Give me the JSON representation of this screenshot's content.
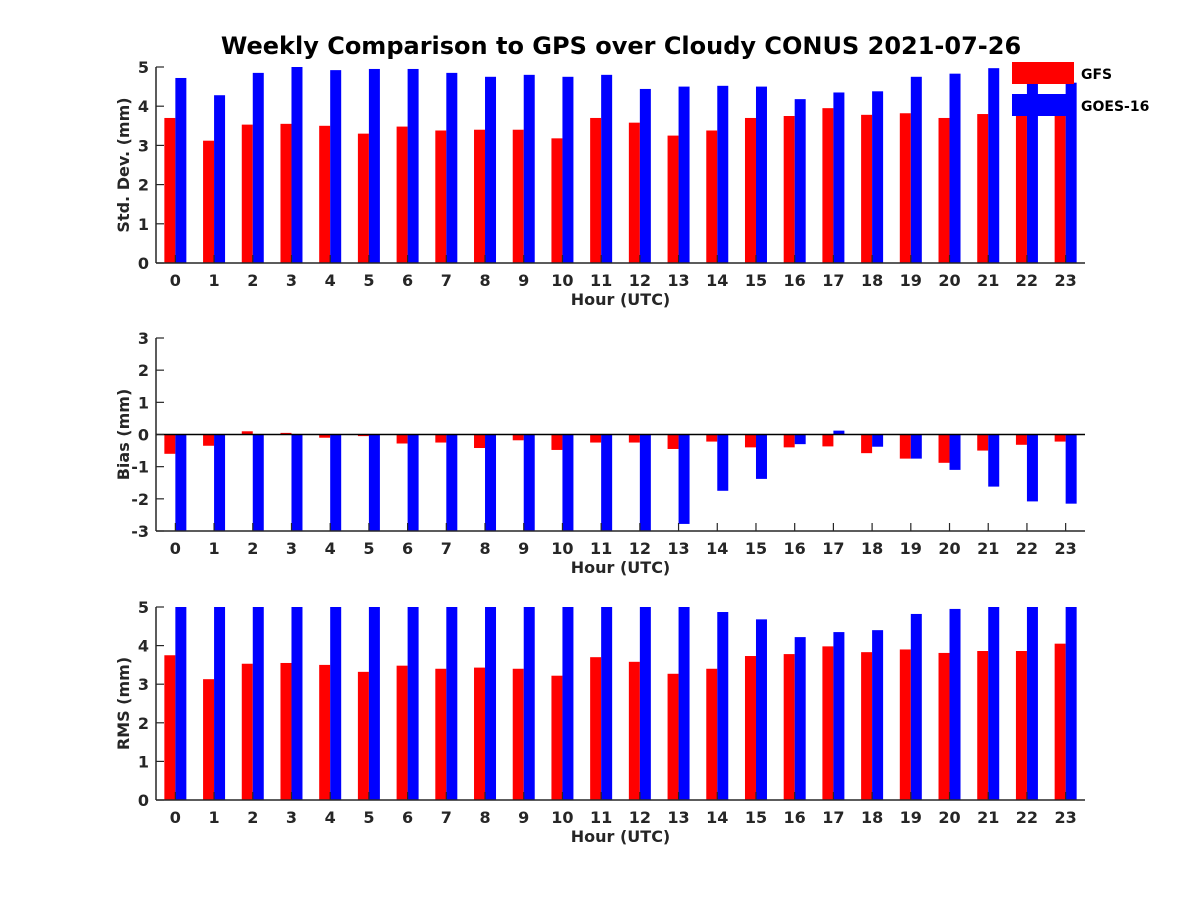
{
  "title": "Weekly Comparison to GPS over Cloudy CONUS 2021-07-26",
  "colors": {
    "GFS": "#ff0000",
    "GOES-16": "#0000ff",
    "axis": "#262626"
  },
  "legend": {
    "placement": "top-right",
    "entries": [
      "GFS",
      "GOES-16"
    ]
  },
  "chart_data": [
    {
      "type": "bar",
      "ylabel": "Std. Dev. (mm)",
      "xlabel": "Hour (UTC)",
      "ylim": [
        0,
        5
      ],
      "yticks": [
        0,
        1,
        2,
        3,
        4,
        5
      ],
      "categories": [
        "0",
        "1",
        "2",
        "3",
        "4",
        "5",
        "6",
        "7",
        "8",
        "9",
        "10",
        "11",
        "12",
        "13",
        "14",
        "15",
        "16",
        "17",
        "18",
        "19",
        "20",
        "21",
        "22",
        "23"
      ],
      "series": [
        {
          "name": "GFS",
          "values": [
            3.7,
            3.12,
            3.53,
            3.55,
            3.5,
            3.3,
            3.48,
            3.38,
            3.4,
            3.4,
            3.18,
            3.7,
            3.58,
            3.25,
            3.38,
            3.7,
            3.75,
            3.95,
            3.78,
            3.82,
            3.7,
            3.8,
            3.85,
            3.75
          ]
        },
        {
          "name": "GOES-16",
          "values": [
            4.72,
            4.28,
            4.85,
            5.0,
            4.92,
            4.95,
            4.95,
            4.85,
            4.75,
            4.8,
            4.75,
            4.8,
            4.44,
            4.5,
            4.52,
            4.5,
            4.18,
            4.35,
            4.38,
            4.75,
            4.83,
            4.97,
            4.75,
            4.6
          ]
        }
      ]
    },
    {
      "type": "bar",
      "ylabel": "Bias (mm)",
      "xlabel": "Hour (UTC)",
      "ylim": [
        -3,
        3
      ],
      "yticks": [
        -3,
        -2,
        -1,
        0,
        1,
        2,
        3
      ],
      "categories": [
        "0",
        "1",
        "2",
        "3",
        "4",
        "5",
        "6",
        "7",
        "8",
        "9",
        "10",
        "11",
        "12",
        "13",
        "14",
        "15",
        "16",
        "17",
        "18",
        "19",
        "20",
        "21",
        "22",
        "23"
      ],
      "series": [
        {
          "name": "GFS",
          "values": [
            -0.6,
            -0.35,
            0.1,
            0.05,
            -0.1,
            -0.05,
            -0.28,
            -0.25,
            -0.42,
            -0.18,
            -0.48,
            -0.25,
            -0.25,
            -0.45,
            -0.22,
            -0.4,
            -0.4,
            -0.37,
            -0.58,
            -0.75,
            -0.88,
            -0.5,
            -0.32,
            -0.22
          ]
        },
        {
          "name": "GOES-16",
          "values": [
            -3.0,
            -3.0,
            -3.0,
            -3.0,
            -3.0,
            -3.0,
            -3.0,
            -3.0,
            -3.0,
            -3.0,
            -3.0,
            -3.0,
            -3.0,
            -2.78,
            -1.75,
            -1.38,
            -0.3,
            0.12,
            -0.38,
            -0.75,
            -1.1,
            -1.62,
            -2.08,
            -2.15
          ]
        }
      ]
    },
    {
      "type": "bar",
      "ylabel": "RMS (mm)",
      "xlabel": "Hour (UTC)",
      "ylim": [
        0,
        5
      ],
      "yticks": [
        0,
        1,
        2,
        3,
        4,
        5
      ],
      "categories": [
        "0",
        "1",
        "2",
        "3",
        "4",
        "5",
        "6",
        "7",
        "8",
        "9",
        "10",
        "11",
        "12",
        "13",
        "14",
        "15",
        "16",
        "17",
        "18",
        "19",
        "20",
        "21",
        "22",
        "23"
      ],
      "series": [
        {
          "name": "GFS",
          "values": [
            3.75,
            3.13,
            3.53,
            3.55,
            3.5,
            3.32,
            3.48,
            3.4,
            3.43,
            3.4,
            3.22,
            3.7,
            3.58,
            3.27,
            3.4,
            3.73,
            3.78,
            3.98,
            3.83,
            3.9,
            3.81,
            3.86,
            3.86,
            4.05
          ]
        },
        {
          "name": "GOES-16",
          "values": [
            5.0,
            5.0,
            5.0,
            5.0,
            5.0,
            5.0,
            5.0,
            5.0,
            5.0,
            5.0,
            5.0,
            5.0,
            5.0,
            5.0,
            4.87,
            4.68,
            4.22,
            4.35,
            4.4,
            4.82,
            4.95,
            5.0,
            5.0,
            5.0
          ]
        }
      ]
    }
  ]
}
